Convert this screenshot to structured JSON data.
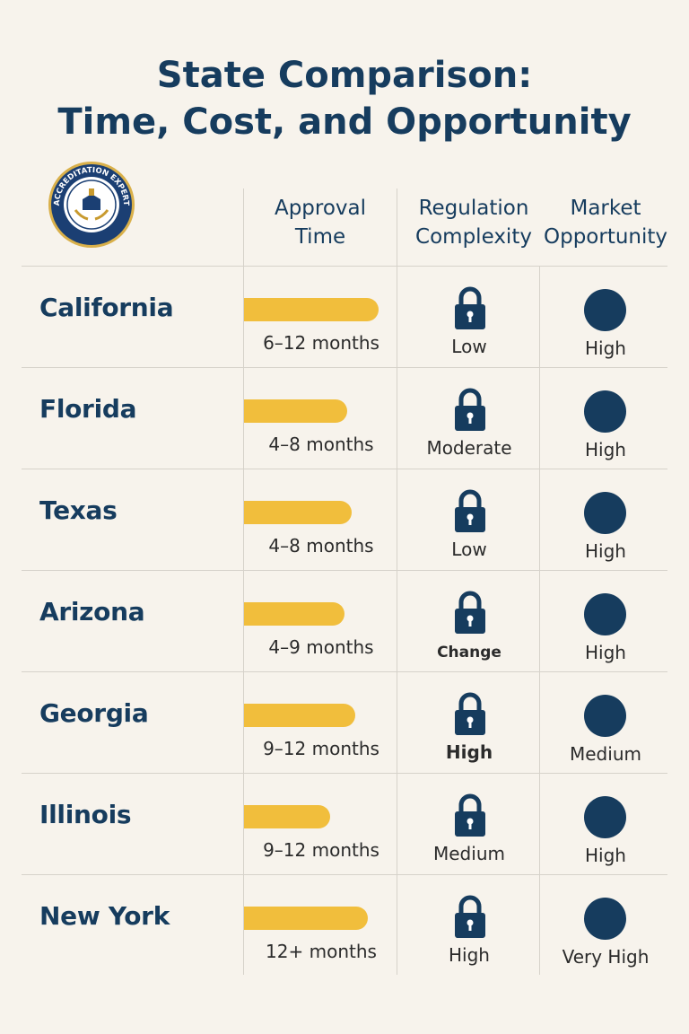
{
  "title_line1": "State Comparison:",
  "title_line2": "Time, Cost, and Opportunity",
  "logo": {
    "icon": "accreditation-seal",
    "text": "ACCREDITATION EXPERT"
  },
  "columns": {
    "approval_line1": "Approval",
    "approval_line2": "Time",
    "regulation_line1": "Regulation",
    "regulation_line2": "Complexity",
    "market_line1": "Market",
    "market_line2": "Opportunity"
  },
  "colors": {
    "bar": "#f1be3c",
    "navy": "#163c5e",
    "background": "#f7f3ec"
  },
  "rows": [
    {
      "state": "California",
      "approval_time": "6–12 months",
      "bar_fraction": 0.87,
      "regulation": "Low",
      "regulation_icon": "lock-icon",
      "market": "High",
      "market_icon": "dot-icon"
    },
    {
      "state": "Florida",
      "approval_time": "4–8 months",
      "bar_fraction": 0.67,
      "regulation": "Moderate",
      "regulation_icon": "lock-icon",
      "market": "High",
      "market_icon": "dot-icon"
    },
    {
      "state": "Texas",
      "approval_time": "4–8 months",
      "bar_fraction": 0.7,
      "regulation": "Low",
      "regulation_icon": "lock-icon",
      "market": "High",
      "market_icon": "dot-icon"
    },
    {
      "state": "Arizona",
      "approval_time": "4–9 months",
      "bar_fraction": 0.65,
      "regulation": "Change",
      "regulation_icon": "lock-icon",
      "market": "High",
      "market_icon": "dot-icon"
    },
    {
      "state": "Georgia",
      "approval_time": "9–12 months",
      "bar_fraction": 0.72,
      "regulation": "High",
      "regulation_icon": "lock-icon",
      "market": "Medium",
      "market_icon": "dot-icon"
    },
    {
      "state": "Illinois",
      "approval_time": "9–12 months",
      "bar_fraction": 0.56,
      "regulation": "Medium",
      "regulation_icon": "lock-icon",
      "market": "High",
      "market_icon": "dot-icon"
    },
    {
      "state": "New York",
      "approval_time": "12+ months",
      "bar_fraction": 0.8,
      "regulation": "High",
      "regulation_icon": "lock-icon",
      "market": "Very High",
      "market_icon": "dot-icon"
    }
  ]
}
